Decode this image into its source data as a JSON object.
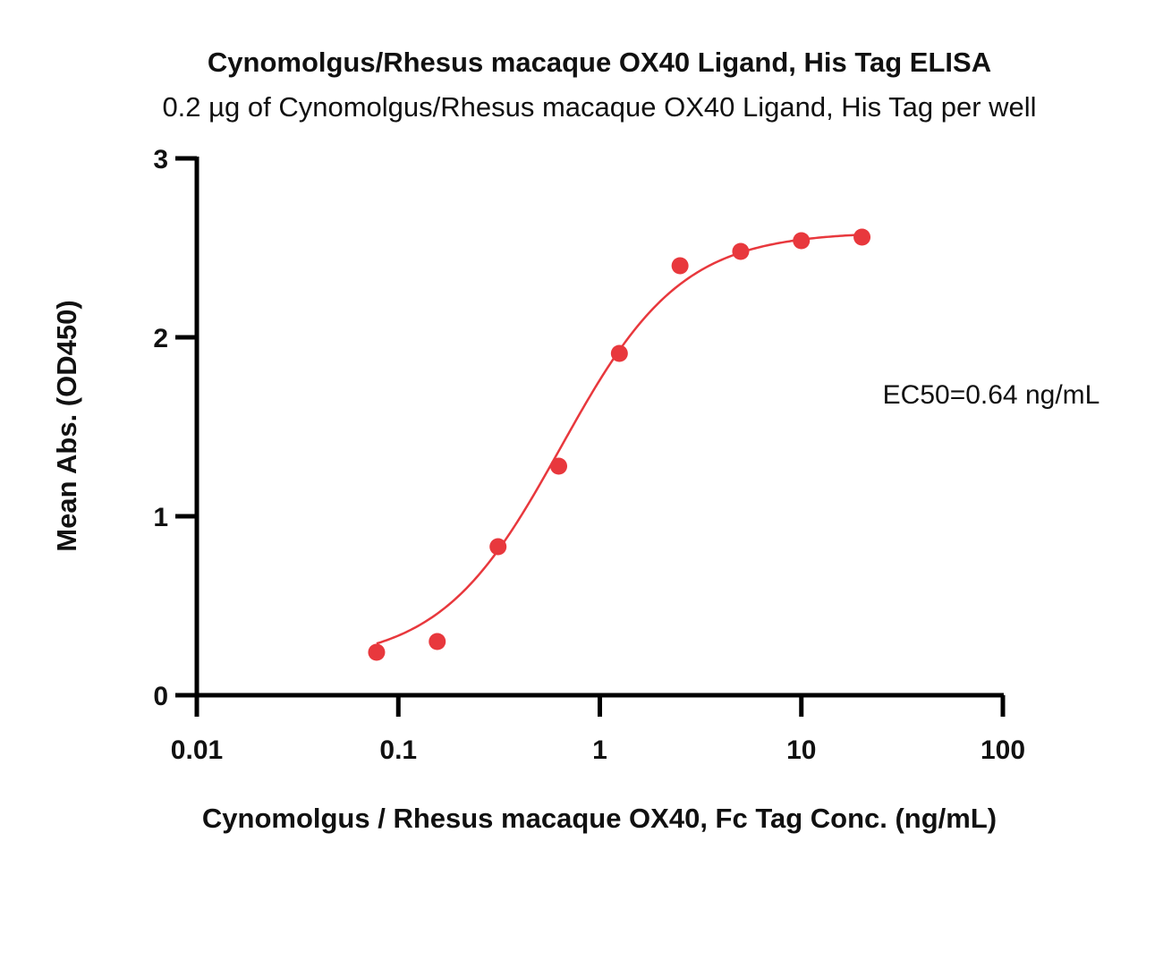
{
  "chart_data": {
    "type": "scatter",
    "title": "Cynomolgus/Rhesus macaque OX40 Ligand, His Tag  ELISA",
    "subtitle": "0.2 µg of Cynomolgus/Rhesus macaque OX40 Ligand, His Tag  per well",
    "xlabel": "Cynomolgus / Rhesus macaque OX40, Fc Tag Conc. (ng/mL)",
    "ylabel": "Mean Abs. (OD450)",
    "xscale": "log",
    "xlim": [
      0.01,
      100
    ],
    "ylim": [
      0,
      3
    ],
    "x_ticks": [
      0.01,
      0.1,
      1,
      10,
      100
    ],
    "x_tick_labels": [
      "0.01",
      "0.1",
      "1",
      "10",
      "100"
    ],
    "y_ticks": [
      0,
      1,
      2,
      3
    ],
    "y_tick_labels": [
      "0",
      "1",
      "2",
      "3"
    ],
    "grid": false,
    "annotation": "EC50=0.64 ng/mL",
    "color": "#e8383d",
    "series": [
      {
        "x": [
          0.078,
          0.156,
          0.3125,
          0.625,
          1.25,
          2.5,
          5,
          10,
          20
        ],
        "y": [
          0.24,
          0.3,
          0.83,
          1.28,
          1.91,
          2.4,
          2.48,
          2.54,
          2.56
        ]
      }
    ],
    "fit": {
      "model": "4PL",
      "bottom": 0.18,
      "top": 2.59,
      "ec50": 0.64,
      "hill": 1.45,
      "x_range": [
        0.078,
        20
      ]
    }
  }
}
